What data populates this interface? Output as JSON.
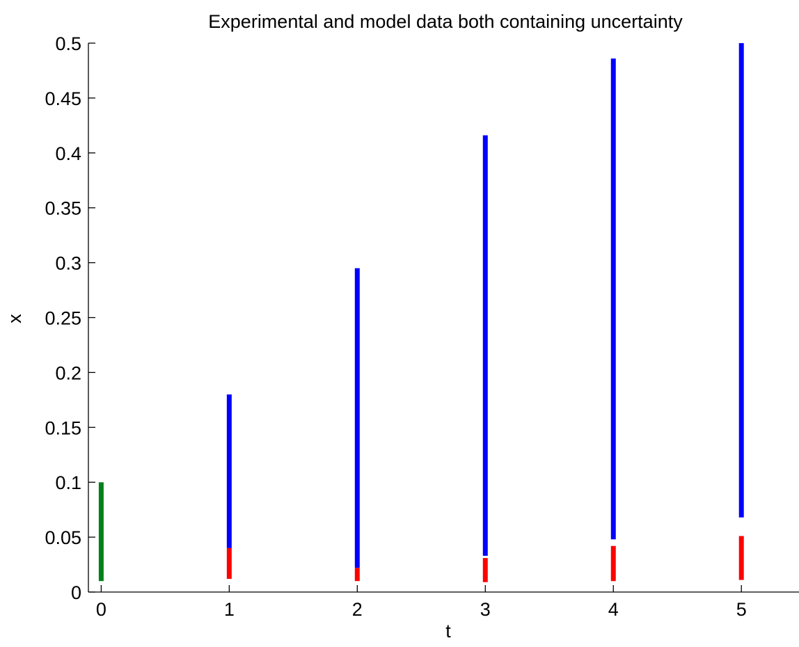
{
  "chart_data": {
    "type": "errorbar",
    "title": "Experimental and model data both containing uncertainty",
    "xlabel": "t",
    "ylabel": "x",
    "xlim": [
      -0.1,
      5.45
    ],
    "ylim": [
      0,
      0.5
    ],
    "xticks": [
      0,
      1,
      2,
      3,
      4,
      5
    ],
    "xtick_labels": [
      "0",
      "1",
      "2",
      "3",
      "4",
      "5"
    ],
    "yticks": [
      0,
      0.05,
      0.1,
      0.15,
      0.2,
      0.25,
      0.3,
      0.35,
      0.4,
      0.45,
      0.5
    ],
    "ytick_labels": [
      "0",
      "0.05",
      "0.1",
      "0.15",
      "0.2",
      "0.25",
      "0.3",
      "0.35",
      "0.4",
      "0.45",
      "0.5"
    ],
    "grid": false,
    "legend": false,
    "series": [
      {
        "color": "#00801a",
        "intervals": [
          {
            "x": 0,
            "low": 0.01,
            "high": 0.1
          }
        ]
      },
      {
        "color": "#0000ff",
        "intervals": [
          {
            "x": 1,
            "low": 0.04,
            "high": 0.18
          },
          {
            "x": 2,
            "low": 0.022,
            "high": 0.295
          },
          {
            "x": 3,
            "low": 0.033,
            "high": 0.416
          },
          {
            "x": 4,
            "low": 0.048,
            "high": 0.486
          },
          {
            "x": 5,
            "low": 0.068,
            "high": 0.5
          }
        ]
      },
      {
        "color": "#ff0000",
        "intervals": [
          {
            "x": 1,
            "low": 0.012,
            "high": 0.04
          },
          {
            "x": 2,
            "low": 0.01,
            "high": 0.022
          },
          {
            "x": 3,
            "low": 0.009,
            "high": 0.031
          },
          {
            "x": 4,
            "low": 0.01,
            "high": 0.042
          },
          {
            "x": 5,
            "low": 0.011,
            "high": 0.051
          }
        ]
      }
    ]
  }
}
